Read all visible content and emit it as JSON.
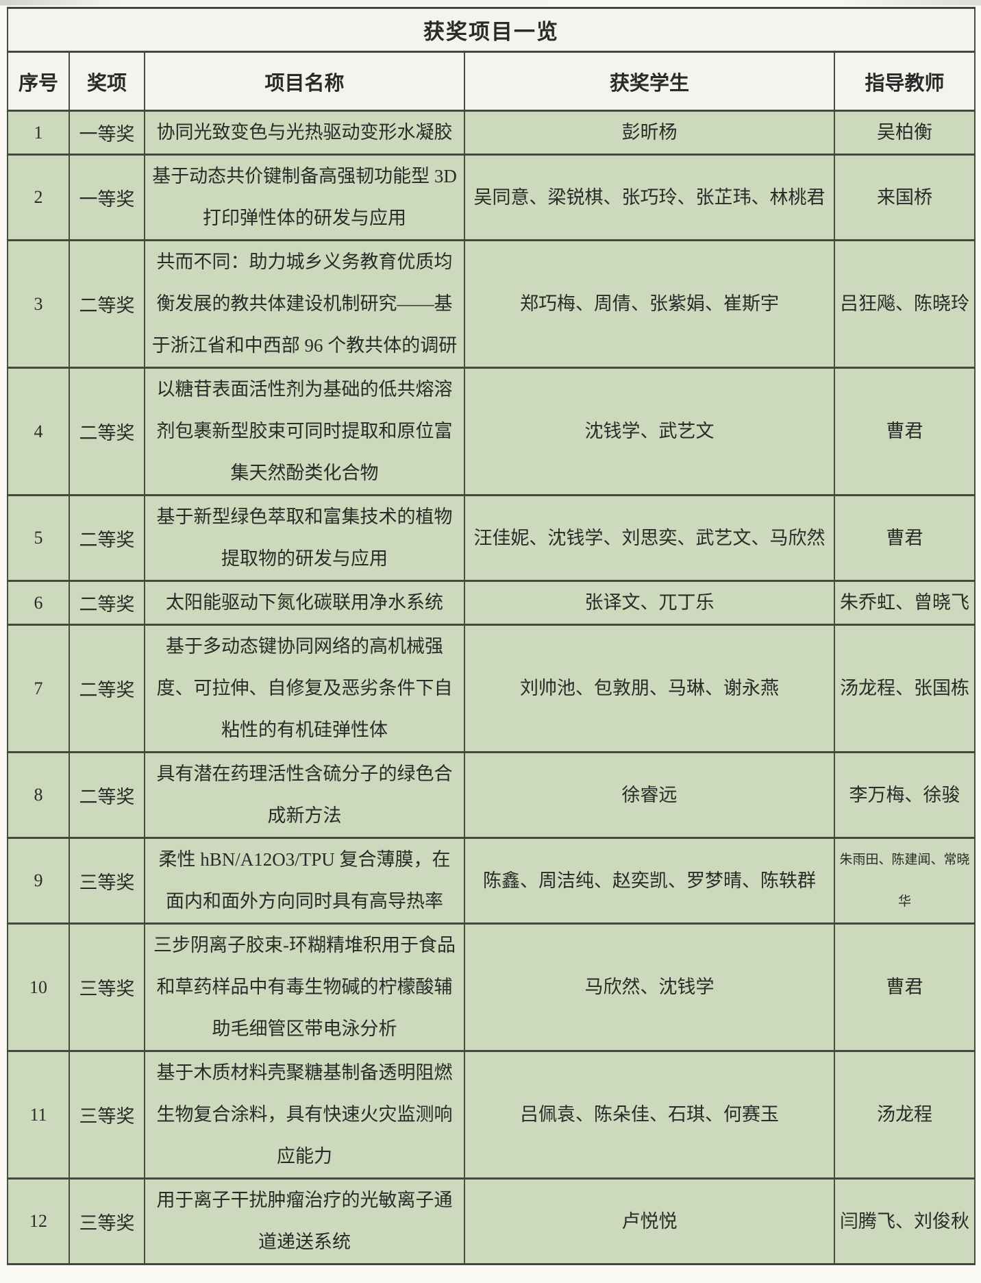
{
  "title": "获奖项目一览",
  "columns": [
    "序号",
    "奖项",
    "项目名称",
    "获奖学生",
    "指导教师"
  ],
  "rows": [
    {
      "no": "1",
      "award": "一等奖",
      "project": "协同光致变色与光热驱动变形水凝胶",
      "students": "彭昕杨",
      "teachers": "吴柏衡"
    },
    {
      "no": "2",
      "award": "一等奖",
      "project": "基于动态共价键制备高强韧功能型 3D 打印弹性体的研发与应用",
      "students": "吴同意、梁锐棋、张巧玲、张芷玮、林桃君",
      "teachers": "来国桥"
    },
    {
      "no": "3",
      "award": "二等奖",
      "project": "共而不同：助力城乡义务教育优质均衡发展的教共体建设机制研究——基于浙江省和中西部 96 个教共体的调研",
      "students": "郑巧梅、周倩、张紫娟、崔斯宇",
      "teachers": "吕狂飚、陈晓玲"
    },
    {
      "no": "4",
      "award": "二等奖",
      "project": "以糖苷表面活性剂为基础的低共熔溶剂包裹新型胶束可同时提取和原位富集天然酚类化合物",
      "students": "沈钱学、武艺文",
      "teachers": "曹君"
    },
    {
      "no": "5",
      "award": "二等奖",
      "project": "基于新型绿色萃取和富集技术的植物提取物的研发与应用",
      "students": "汪佳妮、沈钱学、刘思奕、武艺文、马欣然",
      "teachers": "曹君"
    },
    {
      "no": "6",
      "award": "二等奖",
      "project": "太阳能驱动下氮化碳联用净水系统",
      "students": "张译文、兀丁乐",
      "teachers": "朱乔虹、曾晓飞"
    },
    {
      "no": "7",
      "award": "二等奖",
      "project": "基于多动态键协同网络的高机械强度、可拉伸、自修复及恶劣条件下自粘性的有机硅弹性体",
      "students": "刘帅池、包敦朋、马琳、谢永燕",
      "teachers": "汤龙程、张国栋"
    },
    {
      "no": "8",
      "award": "二等奖",
      "project": "具有潜在药理活性含硫分子的绿色合成新方法",
      "students": "徐睿远",
      "teachers": "李万梅、徐骏"
    },
    {
      "no": "9",
      "award": "三等奖",
      "project": "柔性 hBN/A12O3/TPU 复合薄膜，在面内和面外方向同时具有高导热率",
      "students": "陈鑫、周洁纯、赵奕凯、罗梦晴、陈轶群",
      "teachers": "朱雨田、陈建闻、常晓华"
    },
    {
      "no": "10",
      "award": "三等奖",
      "project": "三步阴离子胶束-环糊精堆积用于食品和草药样品中有毒生物碱的柠檬酸辅助毛细管区带电泳分析",
      "students": "马欣然、沈钱学",
      "teachers": "曹君"
    },
    {
      "no": "11",
      "award": "三等奖",
      "project": "基于木质材料壳聚糖基制备透明阻燃生物复合涂料，具有快速火灾监测响应能力",
      "students": "吕佩袁、陈朵佳、石琪、何赛玉",
      "teachers": "汤龙程"
    },
    {
      "no": "12",
      "award": "三等奖",
      "project": "用于离子干扰肿瘤治疗的光敏离子通道递送系统",
      "students": "卢悦悦",
      "teachers": "闫腾飞、刘俊秋"
    }
  ]
}
